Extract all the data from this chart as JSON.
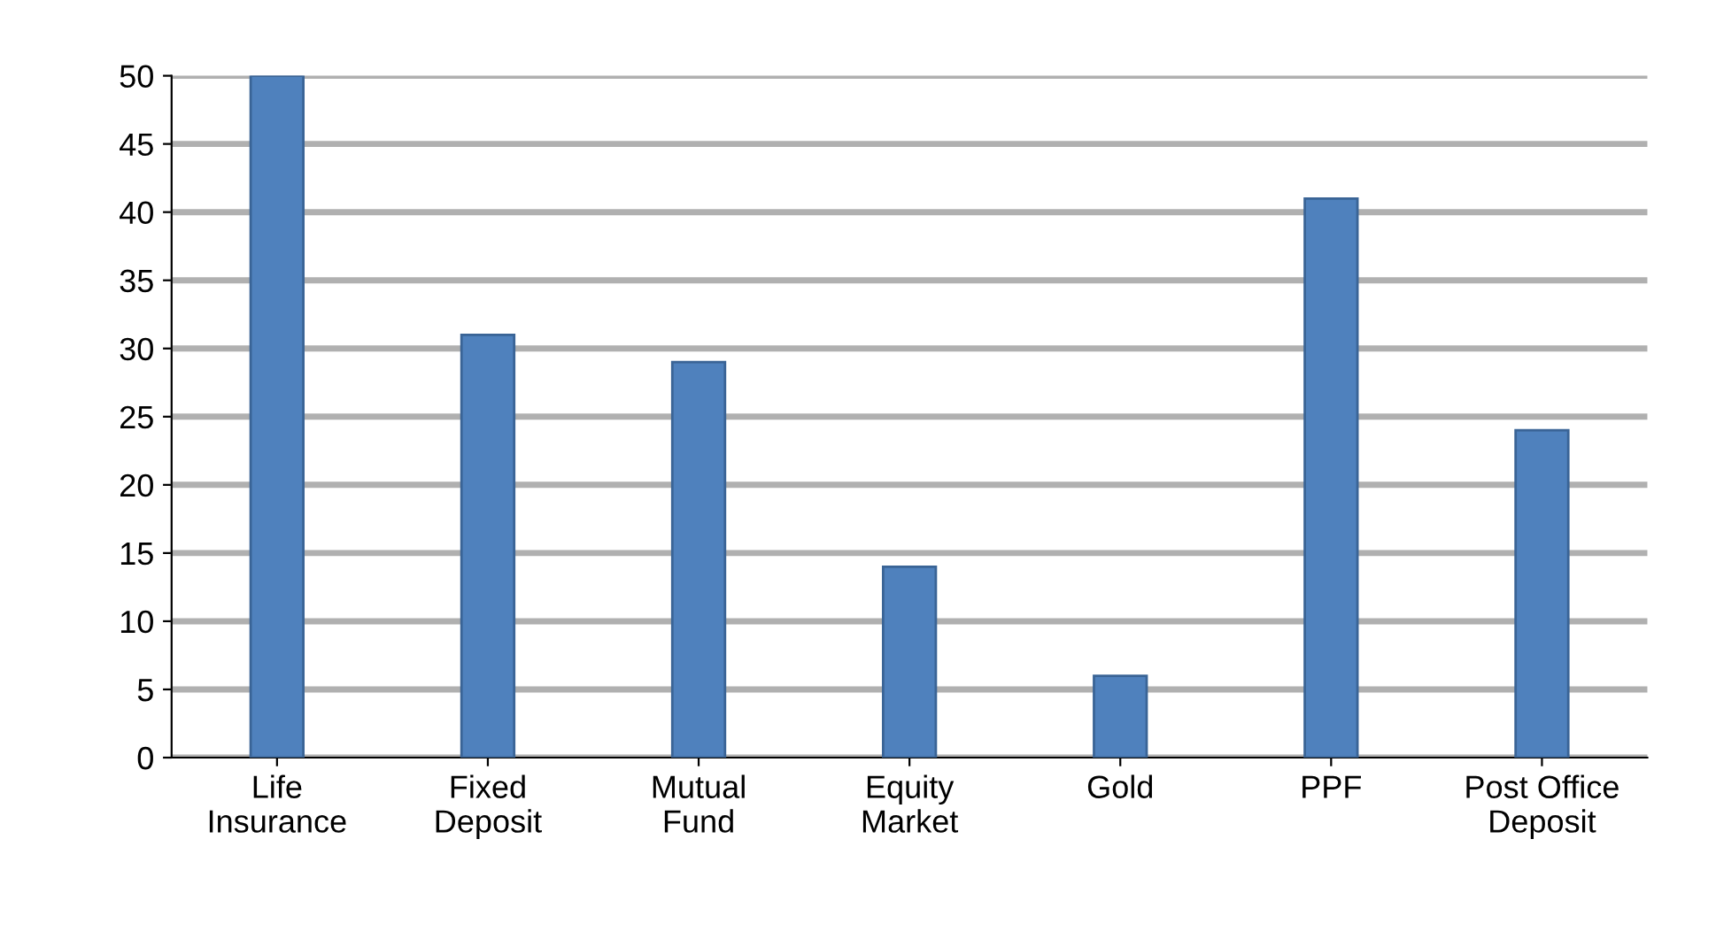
{
  "chart_data": {
    "type": "bar",
    "categories": [
      "Life\nInsurance",
      "Fixed\nDeposit",
      "Mutual\nFund",
      "Equity\nMarket",
      "Gold",
      "PPF",
      "Post Office\nDeposit"
    ],
    "values": [
      50,
      31,
      29,
      14,
      6,
      41,
      24
    ],
    "color": "#4f81bd",
    "ylim": [
      0,
      50
    ],
    "yticks": [
      0,
      5,
      10,
      15,
      20,
      25,
      30,
      35,
      40,
      45,
      50
    ],
    "grid": "y"
  }
}
